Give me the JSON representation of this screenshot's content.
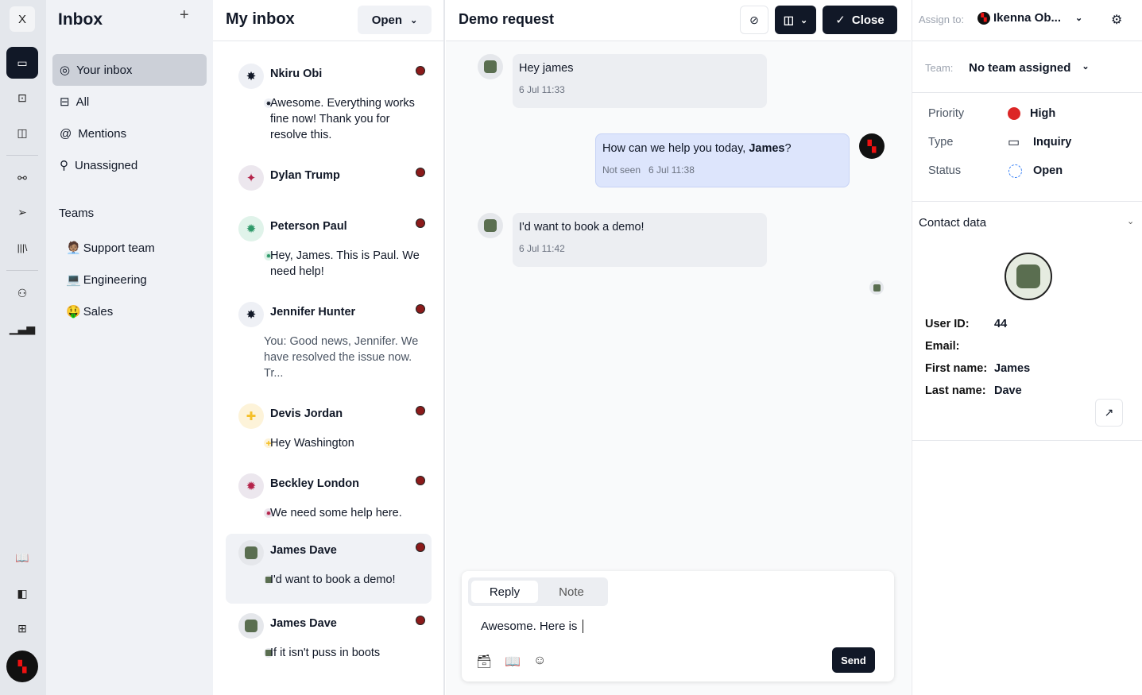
{
  "rail": {
    "close_label": "X",
    "items": [
      "inbox-icon",
      "bot-icon",
      "kanban-icon",
      "workflow-icon",
      "send-icon",
      "library-icon",
      "users-icon",
      "chart-icon",
      "book-icon",
      "panel-icon",
      "apps-icon"
    ]
  },
  "sidebar": {
    "title": "Inbox",
    "add": "+",
    "items": [
      {
        "label": "Your inbox",
        "icon": "user-circle-icon"
      },
      {
        "label": "All",
        "icon": "layout-icon"
      },
      {
        "label": "Mentions",
        "icon": "at-icon"
      },
      {
        "label": "Unassigned",
        "icon": "user-x-icon"
      }
    ],
    "teams_heading": "Teams",
    "teams": [
      {
        "emoji": "🧑🏽‍💼",
        "label": "Support team"
      },
      {
        "emoji": "💻",
        "label": "Engineering"
      },
      {
        "emoji": "🤑",
        "label": "Sales"
      }
    ]
  },
  "list": {
    "title": "My inbox",
    "filter": "Open",
    "conversations": [
      {
        "name": "Nkiru Obi",
        "preview": "Awesome. Everything works fine now! Thank you for resolve this.",
        "glyph": "✸",
        "color": "#111827",
        "bg": "#eef0f5"
      },
      {
        "name": "Dylan Trump",
        "preview": "",
        "glyph": "✦",
        "color": "#b4234a",
        "bg": "#ece7ee"
      },
      {
        "name": "Peterson Paul",
        "preview": "Hey, James. This is Paul. We need help!",
        "glyph": "✹",
        "color": "#2f9a6a",
        "bg": "#e0f3ea"
      },
      {
        "name": "Jennifer Hunter",
        "preview": "You: Good news, Jennifer. We have resolved the issue now. Tr...",
        "glyph": "✸",
        "color": "#111827",
        "bg": "#eef0f5",
        "you": true
      },
      {
        "name": "Devis Jordan",
        "preview": "Hey Washington",
        "glyph": "✚",
        "color": "#f5c02a",
        "bg": "#fdf3d9"
      },
      {
        "name": "Beckley London",
        "preview": "We need some help here.",
        "glyph": "✹",
        "color": "#b4234a",
        "bg": "#ece7ee"
      },
      {
        "name": "James Dave",
        "preview": "I'd want to book a demo!",
        "glyph": "■",
        "color": "#5a6e50",
        "bg": "#e5e7eb",
        "selected": true
      },
      {
        "name": "James Dave",
        "preview": "If it isn't puss in boots",
        "glyph": "■",
        "color": "#5a6e50",
        "bg": "#e5e7eb"
      }
    ]
  },
  "conversation": {
    "title": "Demo request",
    "close_label": "Close",
    "messages": [
      {
        "text": "Hey james",
        "time": "6 Jul 11:33",
        "side": "in"
      },
      {
        "text_pre": "How can we help you today, ",
        "text_bold": "James",
        "text_post": "?",
        "status": "Not seen",
        "time": "6 Jul 11:38",
        "side": "out"
      },
      {
        "text": "I'd want to book a demo!",
        "time": "6 Jul 11:42",
        "side": "in"
      }
    ]
  },
  "composer": {
    "tabs": [
      "Reply",
      "Note"
    ],
    "active_tab": "Reply",
    "value": "Awesome. Here is ",
    "send_label": "Send"
  },
  "details": {
    "assign_label": "Assign to:",
    "assignee": "Ikenna Ob...",
    "team_label": "Team:",
    "team_value": "No team assigned",
    "priority_label": "Priority",
    "priority_value": "High",
    "priority_color": "#dc2626",
    "type_label": "Type",
    "type_value": "Inquiry",
    "status_label": "Status",
    "status_value": "Open",
    "contact_heading": "Contact data",
    "fields": [
      {
        "label": "User ID:",
        "value": "44"
      },
      {
        "label": "Email:",
        "value": ""
      },
      {
        "label": "First name:",
        "value": "James"
      },
      {
        "label": "Last name:",
        "value": "Dave"
      }
    ]
  }
}
